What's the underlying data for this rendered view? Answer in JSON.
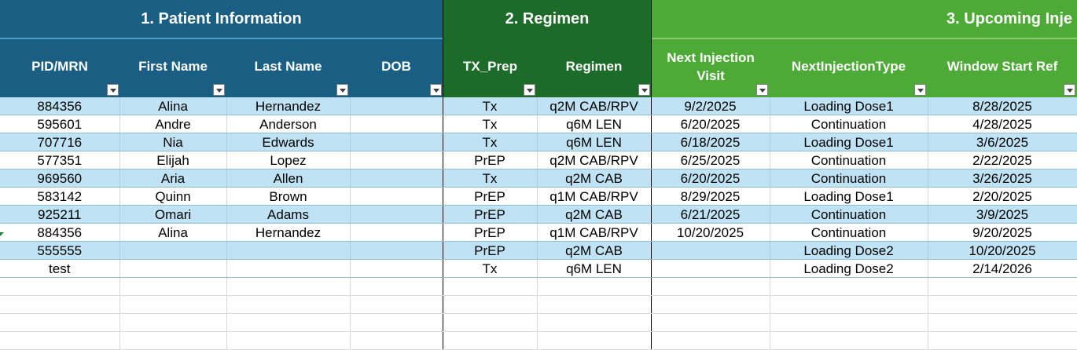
{
  "groups": {
    "patient": "1. Patient Information",
    "regimen": "2. Regimen",
    "upcoming": "3. Upcoming Inje"
  },
  "columns": [
    "PID/MRN",
    "First Name",
    "Last Name",
    "DOB",
    "TX_Prep",
    "Regimen",
    "Next Injection Visit",
    "NextInjectionType",
    "Window Start Ref"
  ],
  "colors": {
    "patient_header": "#1a5e83",
    "regimen_header": "#1d6b29",
    "upcoming_header": "#4eaa36",
    "band_row": "#bfe3f4"
  },
  "rows": [
    [
      "884356",
      "Alina",
      "Hernandez",
      "",
      "Tx",
      "q2M CAB/RPV",
      "9/2/2025",
      "Loading Dose1",
      "8/28/2025"
    ],
    [
      "595601",
      "Andre",
      "Anderson",
      "",
      "Tx",
      "q6M LEN",
      "6/20/2025",
      "Continuation",
      "4/28/2025"
    ],
    [
      "707716",
      "Nia",
      "Edwards",
      "",
      "Tx",
      "q6M LEN",
      "6/18/2025",
      "Loading Dose1",
      "3/6/2025"
    ],
    [
      "577351",
      "Elijah",
      "Lopez",
      "",
      "PrEP",
      "q2M CAB/RPV",
      "6/25/2025",
      "Continuation",
      "2/22/2025"
    ],
    [
      "969560",
      "Aria",
      "Allen",
      "",
      "Tx",
      "q2M CAB",
      "6/20/2025",
      "Continuation",
      "3/26/2025"
    ],
    [
      "583142",
      "Quinn",
      "Brown",
      "",
      "PrEP",
      "q1M CAB/RPV",
      "8/29/2025",
      "Loading Dose1",
      "2/20/2025"
    ],
    [
      "925211",
      "Omari",
      "Adams",
      "",
      "PrEP",
      "q2M CAB",
      "6/21/2025",
      "Continuation",
      "3/9/2025"
    ],
    [
      "884356",
      "Alina",
      "Hernandez",
      "",
      "PrEP",
      "q1M CAB/RPV",
      "10/20/2025",
      "Continuation",
      "9/20/2025"
    ],
    [
      "555555",
      "",
      "",
      "",
      "PrEP",
      "q2M CAB",
      "",
      "Loading Dose2",
      "10/20/2025"
    ],
    [
      "test",
      "",
      "",
      "",
      "Tx",
      "q6M LEN",
      "",
      "Loading Dose2",
      "2/14/2026"
    ]
  ]
}
